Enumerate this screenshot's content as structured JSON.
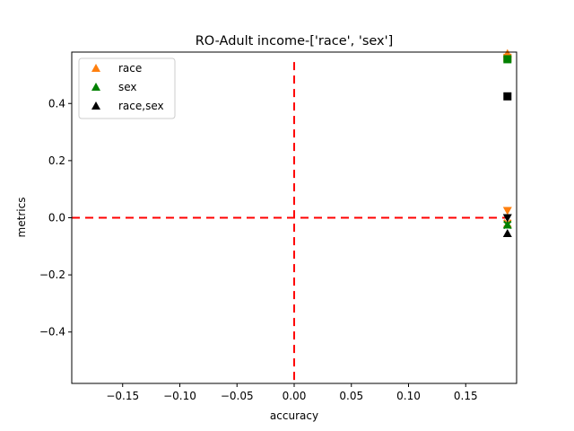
{
  "chart_data": {
    "type": "scatter",
    "title": "RO-Adult income-['race', 'sex']",
    "xlabel": "accuracy",
    "ylabel": "metrics",
    "xlim": [
      -0.1945,
      0.1945
    ],
    "ylim": [
      -0.58,
      0.58
    ],
    "xticks": [
      -0.15,
      -0.1,
      -0.05,
      0.0,
      0.05,
      0.1,
      0.15
    ],
    "xtick_labels": [
      "−0.15",
      "−0.10",
      "−0.05",
      "0.00",
      "0.05",
      "0.10",
      "0.15"
    ],
    "yticks": [
      -0.4,
      -0.2,
      0.0,
      0.2,
      0.4
    ],
    "ytick_labels": [
      "−0.4",
      "−0.2",
      "0.0",
      "0.2",
      "0.4"
    ],
    "reference_lines": [
      {
        "orientation": "vertical",
        "value": 0.0,
        "color": "#ff0000",
        "style": "dashed"
      },
      {
        "orientation": "horizontal",
        "value": 0.0,
        "color": "#ff0000",
        "style": "dashed"
      }
    ],
    "legend": {
      "placement": "top-left",
      "entries": [
        {
          "label": "race",
          "marker": "triangle-up",
          "color": "#ff7f0e"
        },
        {
          "label": "sex",
          "marker": "triangle-up",
          "color": "#008000"
        },
        {
          "label": "race,sex",
          "marker": "triangle-up",
          "color": "#000000"
        }
      ]
    },
    "series": [
      {
        "name": "race",
        "color": "#ff7f0e",
        "points": [
          {
            "x": 0.1865,
            "y": 0.575,
            "marker": "triangle-up"
          },
          {
            "x": 0.1865,
            "y": 0.56,
            "marker": "square"
          },
          {
            "x": 0.1865,
            "y": 0.025,
            "marker": "triangle-down"
          },
          {
            "x": 0.1865,
            "y": -0.02,
            "marker": "x"
          }
        ]
      },
      {
        "name": "sex",
        "color": "#008000",
        "points": [
          {
            "x": 0.1865,
            "y": 0.555,
            "marker": "square"
          },
          {
            "x": 0.1865,
            "y": -0.025,
            "marker": "triangle-up"
          },
          {
            "x": 0.1865,
            "y": -0.025,
            "marker": "x"
          }
        ]
      },
      {
        "name": "race,sex",
        "color": "#000000",
        "points": [
          {
            "x": 0.1865,
            "y": 0.425,
            "marker": "square"
          },
          {
            "x": 0.1865,
            "y": 0.0,
            "marker": "triangle-down"
          },
          {
            "x": 0.1865,
            "y": -0.055,
            "marker": "triangle-up"
          }
        ]
      }
    ]
  }
}
